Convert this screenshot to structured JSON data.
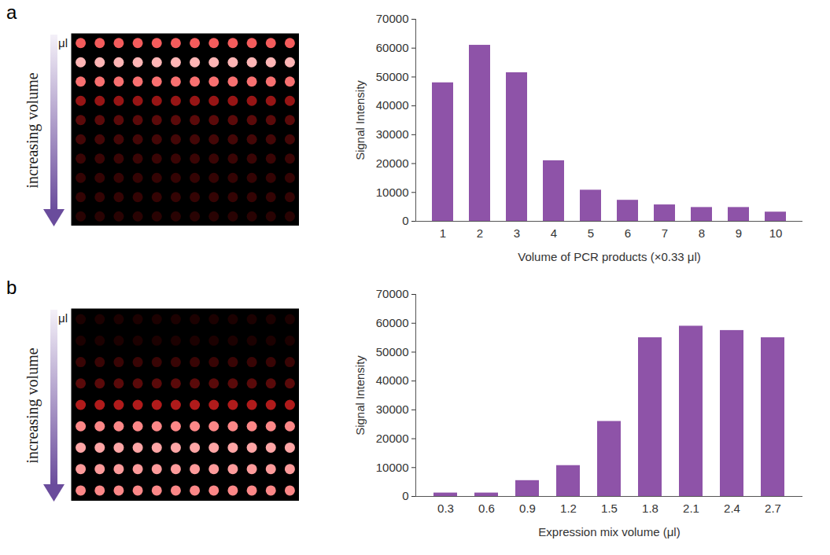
{
  "chart_data": [
    {
      "type": "bar",
      "panel": "a",
      "annotations": [
        "μl",
        "increasing volume"
      ],
      "xlabel": "Volume of PCR products (×0.33 μl)",
      "ylabel": "Signal Intensity",
      "categories": [
        "1",
        "2",
        "3",
        "4",
        "5",
        "6",
        "7",
        "8",
        "9",
        "10"
      ],
      "values": [
        48000,
        61000,
        51500,
        21000,
        10800,
        7300,
        5700,
        4800,
        4800,
        3200
      ],
      "color": "#8e53a8",
      "ylim": [
        0,
        70000
      ],
      "yticks": [
        0,
        10000,
        20000,
        30000,
        40000,
        50000,
        60000,
        70000
      ],
      "grid": false
    },
    {
      "type": "bar",
      "panel": "b",
      "annotations": [
        "μl",
        "increasing volume"
      ],
      "xlabel": "Expression mix volume (μl)",
      "ylabel": "Signal Intensity",
      "categories": [
        "0.3",
        "0.6",
        "0.9",
        "1.2",
        "1.5",
        "1.8",
        "2.1",
        "2.4",
        "2.7"
      ],
      "values": [
        1200,
        1200,
        5500,
        10700,
        26000,
        55000,
        59000,
        57500,
        55000
      ],
      "color": "#8e53a8",
      "ylim": [
        0,
        70000
      ],
      "yticks": [
        0,
        10000,
        20000,
        30000,
        40000,
        50000,
        60000,
        70000
      ],
      "grid": false
    }
  ]
}
